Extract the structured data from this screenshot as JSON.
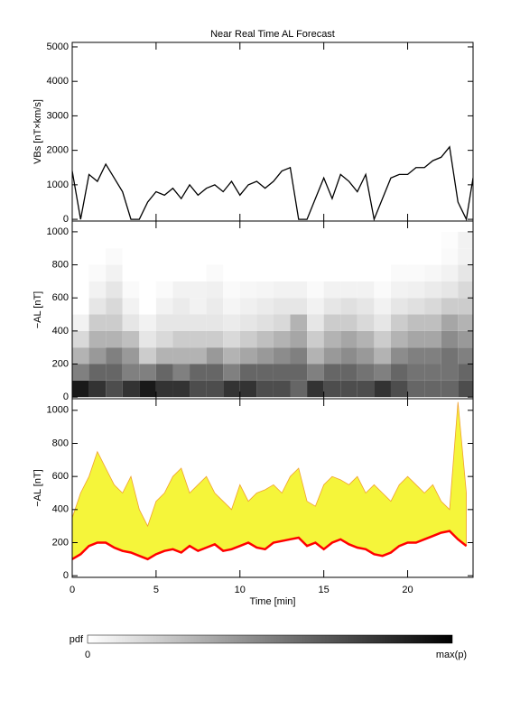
{
  "chart_data": [
    {
      "type": "line",
      "title": "Near Real Time AL Forecast",
      "ylabel": "VBs [nT×km/s]",
      "xlim": [
        0,
        23.9
      ],
      "xticks": [
        0,
        5,
        10,
        15,
        20
      ],
      "ylim": [
        -50,
        5130
      ],
      "yticks": [
        0,
        1000,
        2000,
        3000,
        4000,
        5000
      ],
      "x": [
        0,
        0.5,
        1,
        1.5,
        2,
        2.5,
        3,
        3.5,
        4,
        4.5,
        5,
        5.5,
        6,
        6.5,
        7,
        7.5,
        8,
        8.5,
        9,
        9.5,
        10,
        10.5,
        11,
        11.5,
        12,
        12.5,
        13,
        13.5,
        14,
        14.5,
        15,
        15.5,
        16,
        16.5,
        17,
        17.5,
        18,
        18.5,
        19,
        19.5,
        20,
        20.5,
        21,
        21.5,
        22,
        22.5,
        23,
        23.5,
        23.9
      ],
      "values": [
        1400,
        0,
        1300,
        1100,
        1600,
        1200,
        800,
        0,
        0,
        500,
        800,
        700,
        900,
        600,
        1000,
        700,
        900,
        1000,
        800,
        1100,
        700,
        1000,
        1100,
        900,
        1100,
        1400,
        1500,
        0,
        0,
        600,
        1200,
        600,
        1300,
        1100,
        800,
        1300,
        0,
        600,
        1200,
        1300,
        1300,
        1500,
        1500,
        1700,
        1800,
        2100,
        500,
        0,
        1200
      ],
      "color": "#000000"
    },
    {
      "type": "heatmap",
      "ylabel": "−AL [nT]",
      "xlim": [
        0,
        23.9
      ],
      "xticks": [
        0,
        5,
        10,
        15,
        20
      ],
      "ylim": [
        -10,
        1065
      ],
      "yticks": [
        0,
        200,
        400,
        600,
        800,
        1000
      ],
      "x_bins": [
        0,
        1,
        2,
        3,
        4,
        5,
        6,
        7,
        8,
        9,
        10,
        11,
        12,
        13,
        14,
        15,
        16,
        17,
        18,
        19,
        20,
        21,
        22,
        23,
        24
      ],
      "y_bins": [
        0,
        100,
        200,
        300,
        400,
        500,
        600,
        700,
        800,
        900,
        1000
      ],
      "z": [
        [
          0.9,
          0.5,
          0.3,
          0.15,
          0.05,
          0,
          0,
          0,
          0,
          0
        ],
        [
          0.8,
          0.6,
          0.4,
          0.3,
          0.2,
          0.1,
          0.05,
          0.02,
          0,
          0
        ],
        [
          0.7,
          0.6,
          0.5,
          0.3,
          0.2,
          0.15,
          0.1,
          0.05,
          0.02,
          0
        ],
        [
          0.8,
          0.5,
          0.4,
          0.25,
          0.1,
          0.05,
          0.02,
          0,
          0,
          0
        ],
        [
          0.9,
          0.5,
          0.2,
          0.1,
          0.05,
          0,
          0,
          0,
          0,
          0
        ],
        [
          0.8,
          0.6,
          0.3,
          0.15,
          0.1,
          0.05,
          0.02,
          0,
          0,
          0
        ],
        [
          0.8,
          0.5,
          0.3,
          0.2,
          0.1,
          0.08,
          0.05,
          0,
          0,
          0
        ],
        [
          0.7,
          0.6,
          0.3,
          0.2,
          0.1,
          0.05,
          0.05,
          0,
          0,
          0
        ],
        [
          0.7,
          0.6,
          0.4,
          0.2,
          0.1,
          0.08,
          0.06,
          0.02,
          0,
          0
        ],
        [
          0.8,
          0.5,
          0.3,
          0.15,
          0.08,
          0.04,
          0.02,
          0,
          0,
          0
        ],
        [
          0.8,
          0.6,
          0.35,
          0.2,
          0.1,
          0.06,
          0.03,
          0,
          0,
          0
        ],
        [
          0.7,
          0.6,
          0.4,
          0.25,
          0.12,
          0.08,
          0.04,
          0,
          0,
          0
        ],
        [
          0.7,
          0.6,
          0.45,
          0.3,
          0.15,
          0.1,
          0.05,
          0,
          0,
          0
        ],
        [
          0.6,
          0.6,
          0.5,
          0.35,
          0.3,
          0.1,
          0.05,
          0,
          0,
          0
        ],
        [
          0.8,
          0.5,
          0.3,
          0.2,
          0.1,
          0.05,
          0.02,
          0,
          0,
          0
        ],
        [
          0.7,
          0.6,
          0.4,
          0.3,
          0.2,
          0.1,
          0.05,
          0,
          0,
          0
        ],
        [
          0.7,
          0.6,
          0.45,
          0.35,
          0.2,
          0.12,
          0.05,
          0,
          0,
          0
        ],
        [
          0.7,
          0.55,
          0.4,
          0.3,
          0.15,
          0.1,
          0.05,
          0,
          0,
          0
        ],
        [
          0.8,
          0.5,
          0.3,
          0.2,
          0.1,
          0.05,
          0.02,
          0,
          0,
          0
        ],
        [
          0.7,
          0.6,
          0.45,
          0.3,
          0.2,
          0.1,
          0.05,
          0.02,
          0,
          0
        ],
        [
          0.6,
          0.55,
          0.5,
          0.35,
          0.25,
          0.12,
          0.06,
          0.02,
          0,
          0
        ],
        [
          0.6,
          0.55,
          0.5,
          0.35,
          0.25,
          0.15,
          0.08,
          0.03,
          0,
          0
        ],
        [
          0.6,
          0.55,
          0.55,
          0.45,
          0.35,
          0.2,
          0.1,
          0.05,
          0.02,
          0.01
        ],
        [
          0.7,
          0.6,
          0.5,
          0.4,
          0.3,
          0.2,
          0.15,
          0.1,
          0.05,
          0.05
        ]
      ]
    },
    {
      "type": "band",
      "xlabel": "Time [min]",
      "ylabel": "−AL [nT]",
      "xlim": [
        0,
        23.9
      ],
      "xticks": [
        0,
        5,
        10,
        15,
        20
      ],
      "ylim": [
        -10,
        1070
      ],
      "yticks": [
        0,
        200,
        400,
        600,
        800,
        1000
      ],
      "x": [
        0,
        0.5,
        1,
        1.5,
        2,
        2.5,
        3,
        3.5,
        4,
        4.5,
        5,
        5.5,
        6,
        6.5,
        7,
        7.5,
        8,
        8.5,
        9,
        9.5,
        10,
        10.5,
        11,
        11.5,
        12,
        12.5,
        13,
        13.5,
        14,
        14.5,
        15,
        15.5,
        16,
        16.5,
        17,
        17.5,
        18,
        18.5,
        19,
        19.5,
        20,
        20.5,
        21,
        21.5,
        22,
        22.5,
        23,
        23.5
      ],
      "series": [
        {
          "color": "#f5f53a",
          "values": [
            350,
            500,
            600,
            750,
            650,
            550,
            500,
            600,
            400,
            300,
            450,
            500,
            600,
            650,
            500,
            550,
            600,
            500,
            450,
            400,
            550,
            450,
            500,
            520,
            550,
            500,
            600,
            650,
            450,
            420,
            550,
            600,
            580,
            550,
            600,
            500,
            550,
            500,
            450,
            550,
            600,
            550,
            500,
            550,
            450,
            400,
            1050,
            500
          ]
        },
        {
          "color": "#ff0000",
          "values": [
            100,
            130,
            180,
            200,
            200,
            170,
            150,
            140,
            120,
            100,
            130,
            150,
            160,
            140,
            180,
            150,
            170,
            190,
            150,
            160,
            180,
            200,
            170,
            160,
            200,
            210,
            220,
            230,
            180,
            200,
            160,
            200,
            220,
            190,
            170,
            160,
            130,
            120,
            140,
            180,
            200,
            200,
            220,
            240,
            260,
            270,
            220,
            180
          ]
        }
      ]
    }
  ],
  "colorbar": {
    "label": "pdf",
    "min_label": "0",
    "max_label": "max(p)"
  }
}
